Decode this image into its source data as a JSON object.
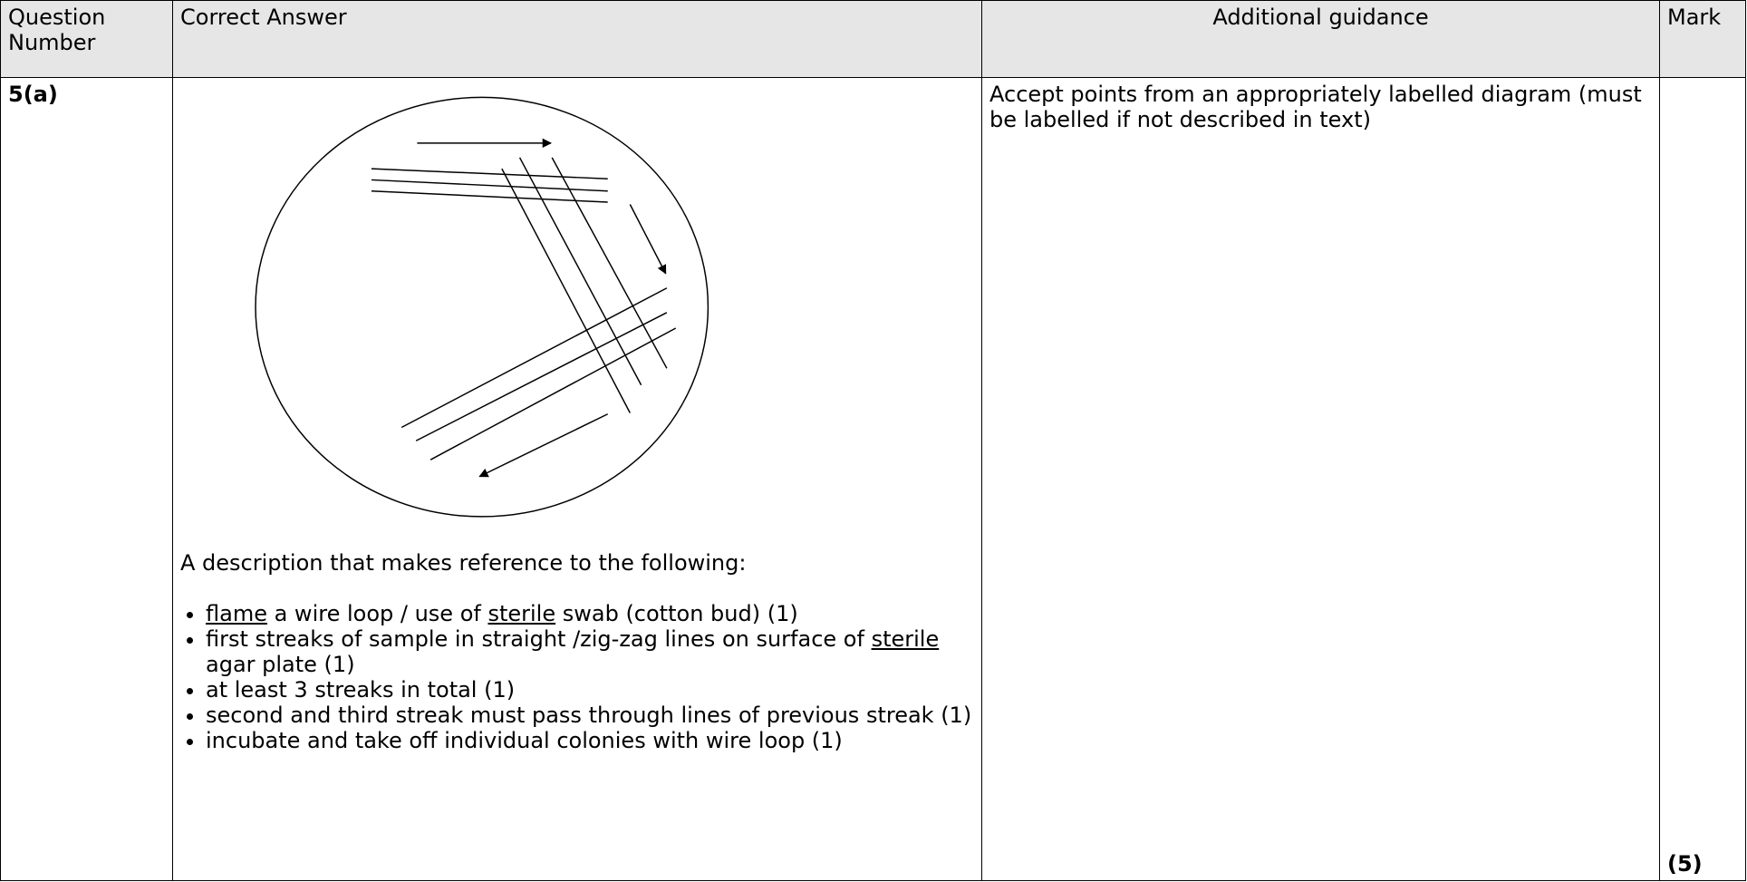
{
  "header": {
    "question_number": "Question Number",
    "correct_answer": "Correct Answer",
    "additional_guidance": "Additional guidance",
    "mark": "Mark"
  },
  "rows": [
    {
      "question_number": "5(a)",
      "correct_answer": {
        "intro": "A description that makes reference to the following:",
        "bullets": [
          [
            "flame",
            " a wire loop / use of ",
            "sterile",
            " swab (cotton bud) (1)"
          ],
          [
            "first streaks of sample in straight /zig-zag lines on surface of ",
            "sterile",
            " agar plate (1)"
          ],
          [
            "at least 3 streaks in total (1)"
          ],
          [
            "second and third streak must pass through lines of previous streak (1)"
          ],
          [
            "incubate and take off individual colonies with wire loop (1)"
          ]
        ]
      },
      "additional_guidance": "Accept points from an appropriately labelled diagram (must be labelled if not described in text)",
      "mark": "(5)"
    }
  ]
}
